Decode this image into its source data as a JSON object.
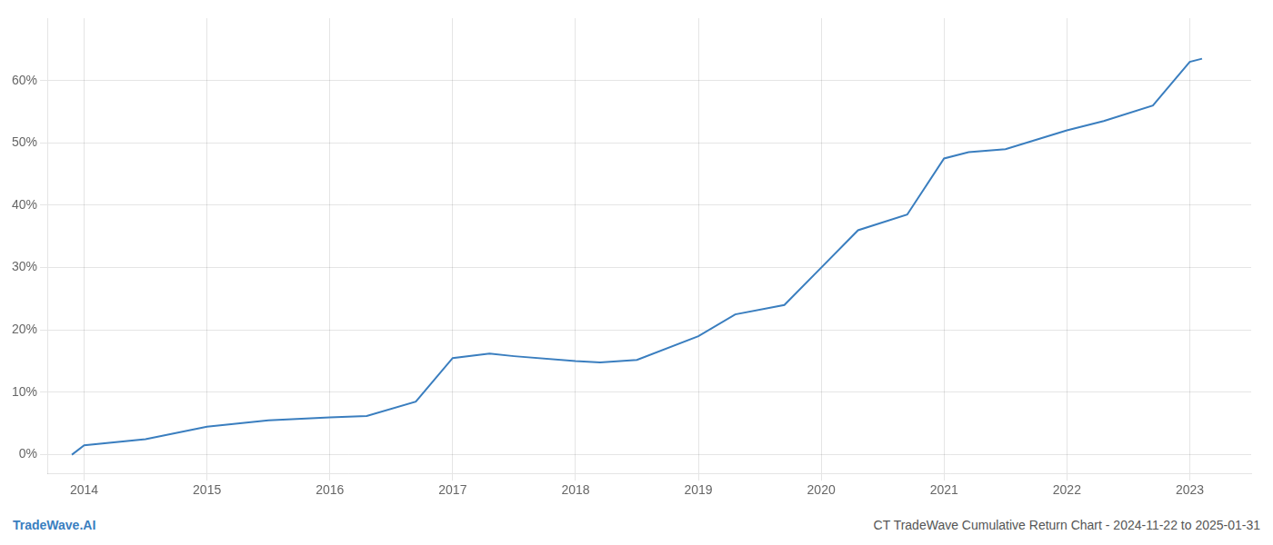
{
  "chart_data": {
    "type": "line",
    "x": [
      2013.9,
      2014.0,
      2014.5,
      2015.0,
      2015.5,
      2016.0,
      2016.3,
      2016.7,
      2017.0,
      2017.3,
      2017.5,
      2018.0,
      2018.2,
      2018.5,
      2019.0,
      2019.3,
      2019.7,
      2020.0,
      2020.3,
      2020.7,
      2021.0,
      2021.2,
      2021.5,
      2022.0,
      2022.3,
      2022.7,
      2023.0,
      2023.1
    ],
    "values": [
      0.0,
      1.5,
      2.5,
      4.5,
      5.5,
      6.0,
      6.2,
      8.5,
      15.5,
      16.2,
      15.8,
      15.0,
      14.8,
      15.2,
      19.0,
      22.5,
      24.0,
      30.0,
      36.0,
      38.5,
      47.5,
      48.5,
      49.0,
      52.0,
      53.5,
      56.0,
      63.0,
      63.5
    ],
    "color": "#3a7ebf",
    "xlim": [
      2013.7,
      2023.5
    ],
    "xticks": [
      2014,
      2015,
      2016,
      2017,
      2018,
      2019,
      2020,
      2021,
      2022,
      2023
    ],
    "ylim": [
      -3,
      70
    ],
    "yticks": [
      {
        "value": 0,
        "label": "0%"
      },
      {
        "value": 10,
        "label": "10%"
      },
      {
        "value": 20,
        "label": "20%"
      },
      {
        "value": 30,
        "label": "30%"
      },
      {
        "value": 40,
        "label": "40%"
      },
      {
        "value": 50,
        "label": "50%"
      },
      {
        "value": 60,
        "label": "60%"
      }
    ],
    "grid": true,
    "annotations": [
      {
        "text": "TradeWave.AI",
        "color": "#3a7ebf"
      },
      {
        "text": "CT TradeWave Cumulative Return Chart - 2024-11-22 to 2025-01-31",
        "color": "#555555"
      }
    ]
  }
}
